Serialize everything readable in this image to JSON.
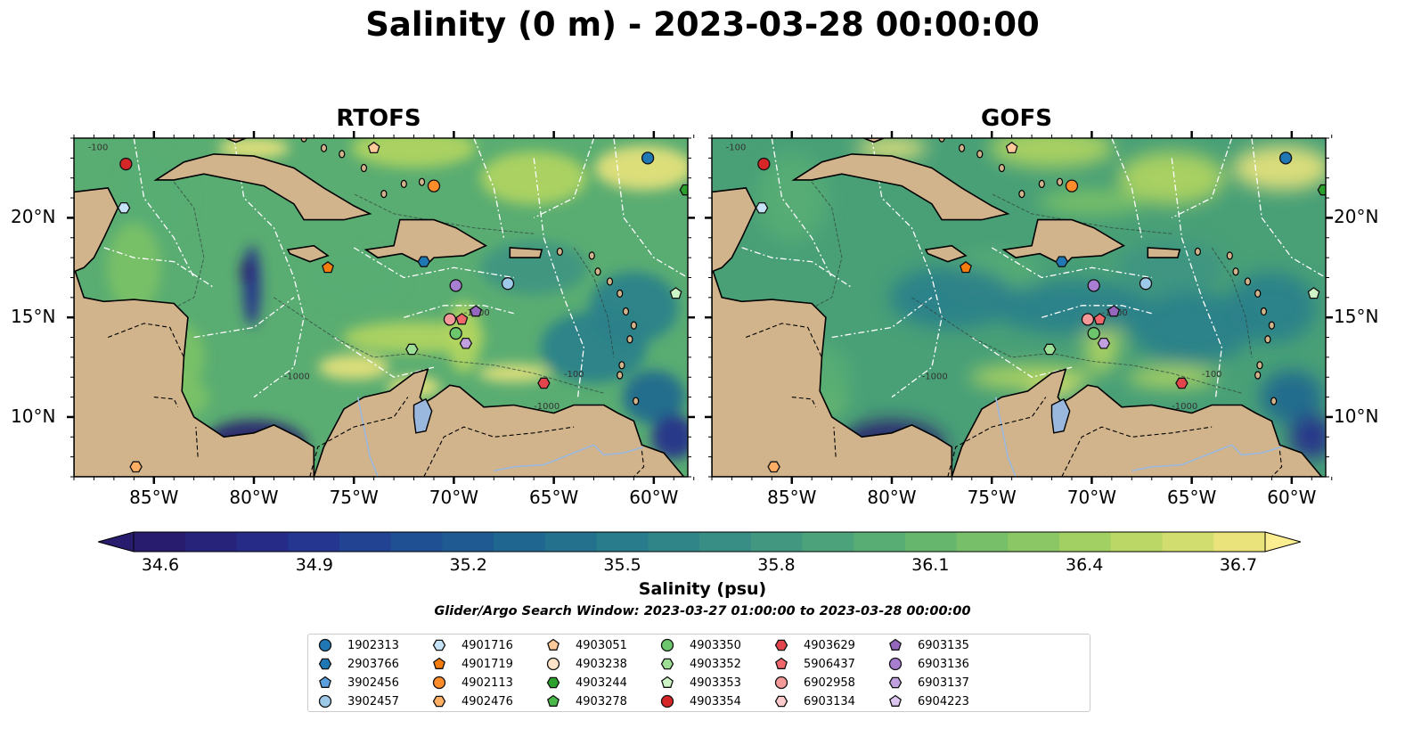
{
  "title": "Salinity (0 m) - 2023-03-28 00:00:00",
  "panels": [
    {
      "title": "RTOFS",
      "variant": "rtofs"
    },
    {
      "title": "GOFS",
      "variant": "gofs"
    }
  ],
  "axes": {
    "lon_labels": [
      "85°W",
      "80°W",
      "75°W",
      "70°W",
      "65°W",
      "60°W"
    ],
    "lon_values": [
      -85,
      -80,
      -75,
      -70,
      -65,
      -60
    ],
    "lat_labels": [
      "20°N",
      "15°N",
      "10°N"
    ],
    "lat_values": [
      20,
      15,
      10
    ],
    "lon_range": [
      -89,
      -58.3
    ],
    "lat_range": [
      7,
      24
    ]
  },
  "contour_labels": [
    "-100",
    "-1000",
    "-1000",
    "-100",
    "-1000"
  ],
  "colorbar": {
    "ticks": [
      "34.6",
      "34.9",
      "35.2",
      "35.5",
      "35.8",
      "36.1",
      "36.4",
      "36.7"
    ],
    "min": 34.6,
    "max": 36.7,
    "label": "Salinity (psu)",
    "colors": [
      "#281c6e",
      "#262d8c",
      "#1f4c95",
      "#1f6790",
      "#2a7f8b",
      "#3d9382",
      "#58ad74",
      "#7cc266",
      "#b3d561",
      "#eae37c"
    ],
    "extend_low": "#281c6e",
    "extend_high": "#fbee90"
  },
  "search_window": "Glider/Argo Search Window: 2023-03-27 01:00:00 to 2023-03-28 00:00:00",
  "legend": [
    {
      "id": "1902313",
      "color": "#1f77b4",
      "marker": "circle"
    },
    {
      "id": "2903766",
      "color": "#1f77b4",
      "marker": "hexagon"
    },
    {
      "id": "3902456",
      "color": "#5ba0dd",
      "marker": "pentagon"
    },
    {
      "id": "3902457",
      "color": "#9ecae9",
      "marker": "circle"
    },
    {
      "id": "4901716",
      "color": "#c6e2f7",
      "marker": "hexagon"
    },
    {
      "id": "4901719",
      "color": "#f57c0e",
      "marker": "pentagon"
    },
    {
      "id": "4902113",
      "color": "#ff8c2a",
      "marker": "circle"
    },
    {
      "id": "4902476",
      "color": "#ffae63",
      "marker": "hexagon"
    },
    {
      "id": "4903051",
      "color": "#ffc99a",
      "marker": "pentagon"
    },
    {
      "id": "4903238",
      "color": "#ffe3c8",
      "marker": "circle"
    },
    {
      "id": "4903244",
      "color": "#2ca02c",
      "marker": "hexagon"
    },
    {
      "id": "4903278",
      "color": "#49b949",
      "marker": "pentagon"
    },
    {
      "id": "4903350",
      "color": "#6cc76c",
      "marker": "circle"
    },
    {
      "id": "4903352",
      "color": "#9edf96",
      "marker": "hexagon"
    },
    {
      "id": "4903353",
      "color": "#cef5c6",
      "marker": "pentagon"
    },
    {
      "id": "4903354",
      "color": "#d62728",
      "marker": "circle"
    },
    {
      "id": "4903629",
      "color": "#e2454b",
      "marker": "hexagon"
    },
    {
      "id": "5906437",
      "color": "#f0686c",
      "marker": "pentagon"
    },
    {
      "id": "6902958",
      "color": "#f59a9a",
      "marker": "circle"
    },
    {
      "id": "6903134",
      "color": "#fccaca",
      "marker": "hexagon"
    },
    {
      "id": "6903135",
      "color": "#9467bd",
      "marker": "pentagon"
    },
    {
      "id": "6903136",
      "color": "#a87ed0",
      "marker": "circle"
    },
    {
      "id": "6903137",
      "color": "#c1a0e0",
      "marker": "hexagon"
    },
    {
      "id": "6904223",
      "color": "#dcc6f0",
      "marker": "pentagon"
    }
  ],
  "floats": [
    {
      "id": "1902313",
      "lon": -60.3,
      "lat": 23.0
    },
    {
      "id": "2903766",
      "lon": -71.5,
      "lat": 17.8
    },
    {
      "id": "3902457",
      "lon": -67.3,
      "lat": 16.7
    },
    {
      "id": "4901716",
      "lon": -86.5,
      "lat": 20.5
    },
    {
      "id": "4901719",
      "lon": -76.3,
      "lat": 17.5
    },
    {
      "id": "4902113",
      "lon": -71.0,
      "lat": 21.6
    },
    {
      "id": "4902476",
      "lon": -85.9,
      "lat": 7.5
    },
    {
      "id": "4903051",
      "lon": -74.0,
      "lat": 23.5
    },
    {
      "id": "4903244",
      "lon": -58.4,
      "lat": 21.4
    },
    {
      "id": "4903350",
      "lon": -69.9,
      "lat": 14.2
    },
    {
      "id": "4903352",
      "lon": -72.1,
      "lat": 13.4
    },
    {
      "id": "4903353",
      "lon": -58.9,
      "lat": 16.2
    },
    {
      "id": "4903354",
      "lon": -86.4,
      "lat": 22.7
    },
    {
      "id": "4903629",
      "lon": -65.5,
      "lat": 11.7
    },
    {
      "id": "5906437",
      "lon": -69.6,
      "lat": 14.9
    },
    {
      "id": "6902958",
      "lon": -70.2,
      "lat": 14.9
    },
    {
      "id": "6903135",
      "lon": -68.9,
      "lat": 15.3
    },
    {
      "id": "6903136",
      "lon": -69.9,
      "lat": 16.6
    },
    {
      "id": "6903137",
      "lon": -69.4,
      "lat": 13.7
    }
  ]
}
